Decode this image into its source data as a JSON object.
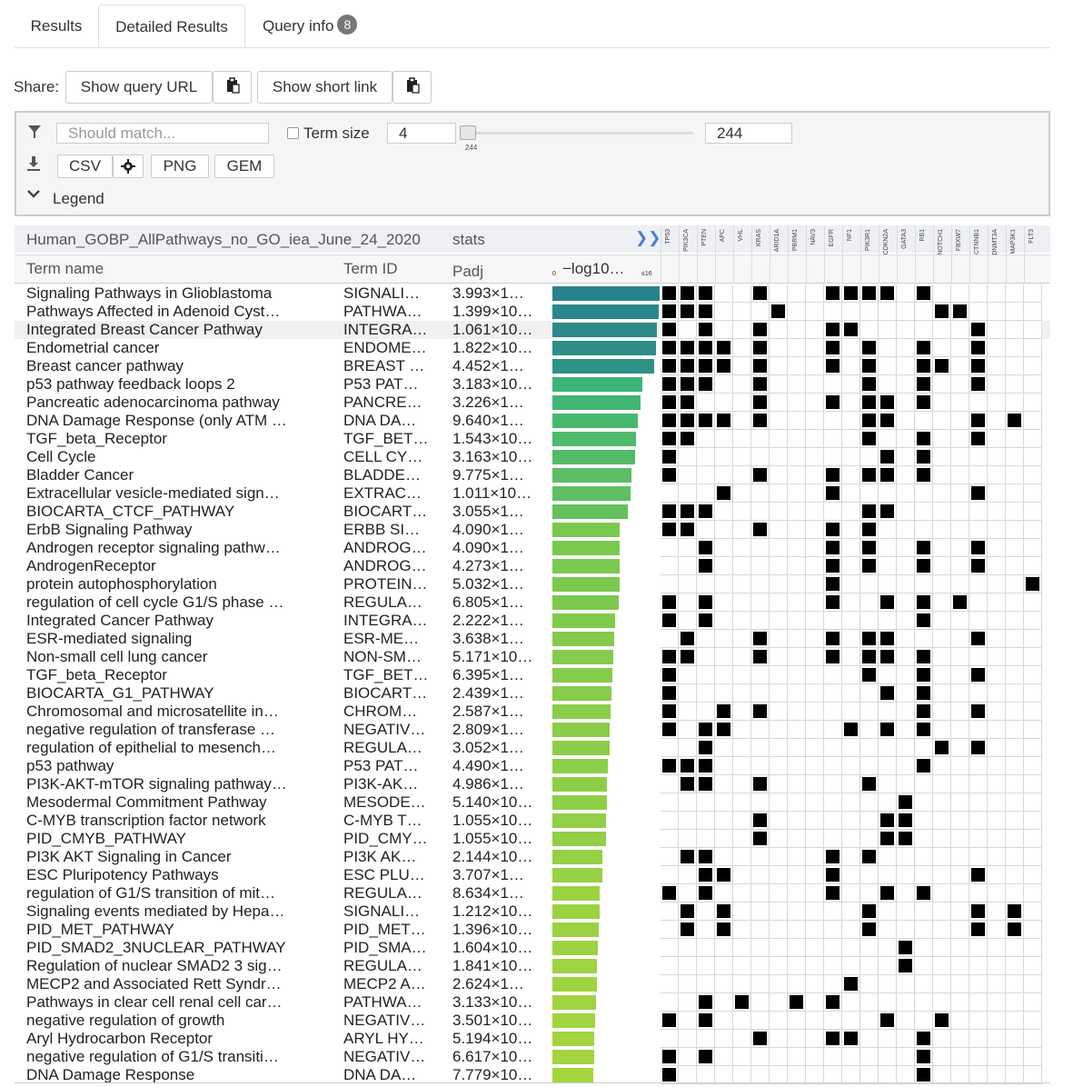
{
  "tabs": [
    {
      "label": "Results"
    },
    {
      "label": "Detailed Results"
    },
    {
      "label": "Query info",
      "badge": "8"
    }
  ],
  "share": {
    "label": "Share:",
    "show_query_url": "Show query URL",
    "show_short_link": "Show short link"
  },
  "filter": {
    "search_placeholder": "Should match...",
    "term_size_label": "Term size",
    "term_size_min": "4",
    "term_size_max": "244",
    "slider_value_label": "244",
    "buttons": {
      "csv": "CSV",
      "png": "PNG",
      "gem": "GEM"
    },
    "legend_label": "Legend"
  },
  "table": {
    "source_name": "Human_GOBP_AllPathways_no_GO_iea_June_24_2020",
    "stats_label": "stats",
    "col_term_name": "Term name",
    "col_term_id": "Term ID",
    "col_padj": "Padj",
    "col_neglog": "−log10…",
    "axis_min": "0",
    "axis_max": "≤16"
  },
  "genes": [
    "TP53",
    "PIK3CA",
    "PTEN",
    "APC",
    "VHL",
    "KRAS",
    "ARID1A",
    "PBRM1",
    "NAV3",
    "EGFR",
    "NF1",
    "PIK3R1",
    "CDKN2A",
    "GATA3",
    "RB1",
    "NOTCH1",
    "FBXW7",
    "CTNNB1",
    "DNMT3A",
    "MAP3K1",
    "FLT3"
  ],
  "rows": [
    {
      "name": "Signaling Pathways in Glioblastoma",
      "id": "SIGNALI…",
      "padj": "3.993×1…",
      "score": 16,
      "genes": [
        0,
        1,
        2,
        5,
        9,
        10,
        11,
        12,
        14
      ]
    },
    {
      "name": "Pathways Affected in Adenoid Cyst…",
      "id": "PATHWA…",
      "padj": "1.399×10…",
      "score": 15.8,
      "genes": [
        0,
        1,
        2,
        6,
        15,
        16
      ]
    },
    {
      "name": "Integrated Breast Cancer Pathway",
      "id": "INTEGRA…",
      "padj": "1.061×10…",
      "score": 15.6,
      "genes": [
        0,
        2,
        5,
        9,
        10,
        17
      ]
    },
    {
      "name": "Endometrial cancer",
      "id": "ENDOME…",
      "padj": "1.822×10…",
      "score": 15.4,
      "genes": [
        0,
        1,
        2,
        3,
        5,
        9,
        11,
        14,
        17
      ]
    },
    {
      "name": "Breast cancer pathway",
      "id": "BREAST …",
      "padj": "4.452×1…",
      "score": 15.2,
      "genes": [
        0,
        1,
        2,
        3,
        5,
        9,
        11,
        14,
        15,
        17
      ]
    },
    {
      "name": "p53 pathway feedback loops 2",
      "id": "P53 PAT…",
      "padj": "3.183×10…",
      "score": 13.4,
      "genes": [
        0,
        1,
        2,
        5,
        11,
        14,
        17
      ]
    },
    {
      "name": "Pancreatic adenocarcinoma pathway",
      "id": "PANCRE…",
      "padj": "3.226×1…",
      "score": 13.2,
      "genes": [
        0,
        1,
        5,
        9,
        11,
        12,
        14
      ]
    },
    {
      "name": "DNA Damage Response (only ATM …",
      "id": "DNA DA…",
      "padj": "9.640×1…",
      "score": 12.7,
      "genes": [
        0,
        1,
        2,
        3,
        5,
        11,
        12,
        17,
        19
      ]
    },
    {
      "name": "TGF_beta_Receptor",
      "id": "TGF_BET…",
      "padj": "1.543×10…",
      "score": 12.5,
      "genes": [
        0,
        1,
        11,
        14,
        17
      ]
    },
    {
      "name": "Cell Cycle",
      "id": "CELL CY…",
      "padj": "3.163×10…",
      "score": 12.3,
      "genes": [
        0,
        12,
        14
      ]
    },
    {
      "name": "Bladder Cancer",
      "id": "BLADDE…",
      "padj": "9.775×1…",
      "score": 11.8,
      "genes": [
        0,
        5,
        9,
        11,
        12,
        14
      ]
    },
    {
      "name": "Extracellular vesicle-mediated sign…",
      "id": "EXTRAC…",
      "padj": "1.011×10…",
      "score": 11.6,
      "genes": [
        3,
        9,
        17
      ]
    },
    {
      "name": "BIOCARTA_CTCF_PATHWAY",
      "id": "BIOCART…",
      "padj": "3.055×1…",
      "score": 11.3,
      "genes": [
        0,
        1,
        2,
        11,
        12
      ]
    },
    {
      "name": "ErbB Signaling Pathway",
      "id": "ERBB SI…",
      "padj": "4.090×1…",
      "score": 10.1,
      "genes": [
        0,
        1,
        5,
        9,
        11
      ]
    },
    {
      "name": "Androgen receptor signaling pathw…",
      "id": "ANDROG…",
      "padj": "4.090×1…",
      "score": 10.1,
      "genes": [
        2,
        9,
        11,
        14,
        17
      ]
    },
    {
      "name": "AndrogenReceptor",
      "id": "ANDROG…",
      "padj": "4.273×1…",
      "score": 10.0,
      "genes": [
        2,
        9,
        11,
        14,
        17
      ]
    },
    {
      "name": "protein autophosphorylation",
      "id": "PROTEIN…",
      "padj": "5.032×1…",
      "score": 10.0,
      "genes": [
        9,
        20
      ]
    },
    {
      "name": "regulation of cell cycle G1/S phase …",
      "id": "REGULA…",
      "padj": "6.805×1…",
      "score": 9.9,
      "genes": [
        0,
        2,
        9,
        12,
        14,
        16
      ]
    },
    {
      "name": "Integrated Cancer Pathway",
      "id": "INTEGRA…",
      "padj": "2.222×1…",
      "score": 9.4,
      "genes": [
        0,
        2,
        14
      ]
    },
    {
      "name": "ESR-mediated signaling",
      "id": "ESR-ME…",
      "padj": "3.638×1…",
      "score": 9.2,
      "genes": [
        1,
        5,
        9,
        11,
        12,
        17
      ]
    },
    {
      "name": "Non-small cell lung cancer",
      "id": "NON-SM…",
      "padj": "5.171×10…",
      "score": 9.1,
      "genes": [
        0,
        1,
        5,
        9,
        11,
        12,
        14
      ]
    },
    {
      "name": "TGF_beta_Receptor",
      "id": "TGF_BET…",
      "padj": "6.395×1…",
      "score": 9.0,
      "genes": [
        0,
        11,
        14,
        17
      ]
    },
    {
      "name": "BIOCARTA_G1_PATHWAY",
      "id": "BIOCART…",
      "padj": "2.439×1…",
      "score": 8.8,
      "genes": [
        0,
        12,
        14
      ]
    },
    {
      "name": "Chromosomal and microsatellite in…",
      "id": "CHROM…",
      "padj": "2.587×1…",
      "score": 8.7,
      "genes": [
        0,
        3,
        5,
        14,
        17
      ]
    },
    {
      "name": "negative regulation of transferase …",
      "id": "NEGATIV…",
      "padj": "2.809×1…",
      "score": 8.6,
      "genes": [
        0,
        2,
        3,
        10,
        12,
        14
      ]
    },
    {
      "name": "regulation of epithelial to mesench…",
      "id": "REGULA…",
      "padj": "3.052×1…",
      "score": 8.5,
      "genes": [
        2,
        15,
        17
      ]
    },
    {
      "name": "p53 pathway",
      "id": "P53 PAT…",
      "padj": "4.490×1…",
      "score": 8.3,
      "genes": [
        0,
        1,
        2,
        14
      ]
    },
    {
      "name": "PI3K-AKT-mTOR signaling pathway…",
      "id": "PI3K-AK…",
      "padj": "4.986×1…",
      "score": 8.2,
      "genes": [
        1,
        2,
        5,
        11
      ]
    },
    {
      "name": "Mesodermal Commitment Pathway",
      "id": "MESODE…",
      "padj": "5.140×10…",
      "score": 8.1,
      "genes": [
        13
      ]
    },
    {
      "name": "C-MYB transcription factor network",
      "id": "C-MYB T…",
      "padj": "1.055×10…",
      "score": 8.0,
      "genes": [
        5,
        12,
        13
      ]
    },
    {
      "name": "PID_CMYB_PATHWAY",
      "id": "PID_CMY…",
      "padj": "1.055×10…",
      "score": 8.0,
      "genes": [
        5,
        12,
        13
      ]
    },
    {
      "name": "PI3K AKT Signaling in Cancer",
      "id": "PI3K AK…",
      "padj": "2.144×10…",
      "score": 7.5,
      "genes": [
        1,
        2,
        9,
        11
      ]
    },
    {
      "name": "ESC Pluripotency Pathways",
      "id": "ESC PLU…",
      "padj": "3.707×1…",
      "score": 7.4,
      "genes": [
        2,
        3,
        9,
        17
      ]
    },
    {
      "name": "regulation of G1/S transition of mit…",
      "id": "REGULA…",
      "padj": "8.634×1…",
      "score": 7.1,
      "genes": [
        0,
        2,
        9,
        12,
        14
      ]
    },
    {
      "name": "Signaling events mediated by Hepa…",
      "id": "SIGNALI…",
      "padj": "1.212×10…",
      "score": 7.0,
      "genes": [
        1,
        3,
        11,
        17,
        19
      ]
    },
    {
      "name": "PID_MET_PATHWAY",
      "id": "PID_MET…",
      "padj": "1.396×10…",
      "score": 6.9,
      "genes": [
        1,
        3,
        11,
        17,
        19
      ]
    },
    {
      "name": "PID_SMAD2_3NUCLEAR_PATHWAY",
      "id": "PID_SMA…",
      "padj": "1.604×10…",
      "score": 6.8,
      "genes": [
        13
      ]
    },
    {
      "name": "Regulation of nuclear SMAD2 3 sig…",
      "id": "REGULA…",
      "padj": "1.841×10…",
      "score": 6.7,
      "genes": [
        13
      ]
    },
    {
      "name": "MECP2 and Associated Rett Syndr…",
      "id": "MECP2 A…",
      "padj": "2.624×1…",
      "score": 6.6,
      "genes": [
        10
      ]
    },
    {
      "name": "Pathways in clear cell renal cell car…",
      "id": "PATHWA…",
      "padj": "3.133×10…",
      "score": 6.5,
      "genes": [
        2,
        4,
        7,
        9
      ]
    },
    {
      "name": "negative regulation of growth",
      "id": "NEGATIV…",
      "padj": "3.501×10…",
      "score": 6.4,
      "genes": [
        0,
        2,
        12,
        15
      ]
    },
    {
      "name": "Aryl Hydrocarbon Receptor",
      "id": "ARYL HY…",
      "padj": "5.194×10…",
      "score": 6.3,
      "genes": [
        5,
        9,
        10,
        14
      ]
    },
    {
      "name": "negative regulation of G1/S transiti…",
      "id": "NEGATIV…",
      "padj": "6.617×10…",
      "score": 6.2,
      "genes": [
        0,
        2,
        14
      ]
    },
    {
      "name": "DNA Damage Response",
      "id": "DNA DA…",
      "padj": "7.779×10…",
      "score": 6.1,
      "genes": [
        0,
        14
      ]
    }
  ],
  "highlight_row": 2,
  "score_max": 16
}
